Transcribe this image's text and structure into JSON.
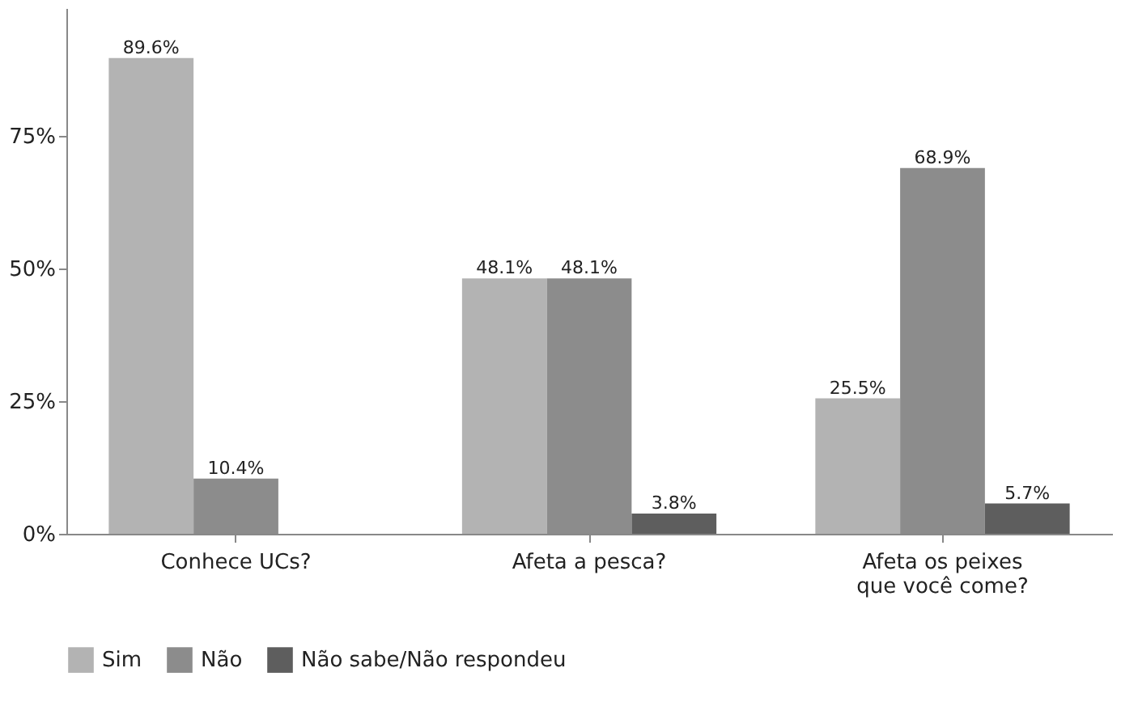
{
  "chart_data": {
    "type": "bar",
    "categories": [
      "Conhece UCs?",
      "Afeta a pesca?",
      "Afeta os peixes\nque você come?"
    ],
    "series": [
      {
        "name": "Sim",
        "color": "#b3b3b3",
        "values": [
          89.6,
          48.1,
          25.5
        ],
        "value_labels": [
          "89.6%",
          "48.1%",
          "25.5%"
        ]
      },
      {
        "name": "Não",
        "color": "#8c8c8c",
        "values": [
          10.4,
          48.1,
          68.9
        ],
        "value_labels": [
          "10.4%",
          "48.1%",
          "68.9%"
        ]
      },
      {
        "name": "Não sabe/Não respondeu",
        "color": "#5e5e5e",
        "values": [
          null,
          3.8,
          5.7
        ],
        "value_labels": [
          null,
          "3.8%",
          "5.7%"
        ]
      }
    ],
    "ylim": [
      0,
      99
    ],
    "yticks": [
      {
        "value": 0,
        "label": "0%"
      },
      {
        "value": 25,
        "label": "25%"
      },
      {
        "value": 50,
        "label": "50%"
      },
      {
        "value": 75,
        "label": "75%"
      }
    ],
    "grid": false,
    "legend": "bottom"
  }
}
